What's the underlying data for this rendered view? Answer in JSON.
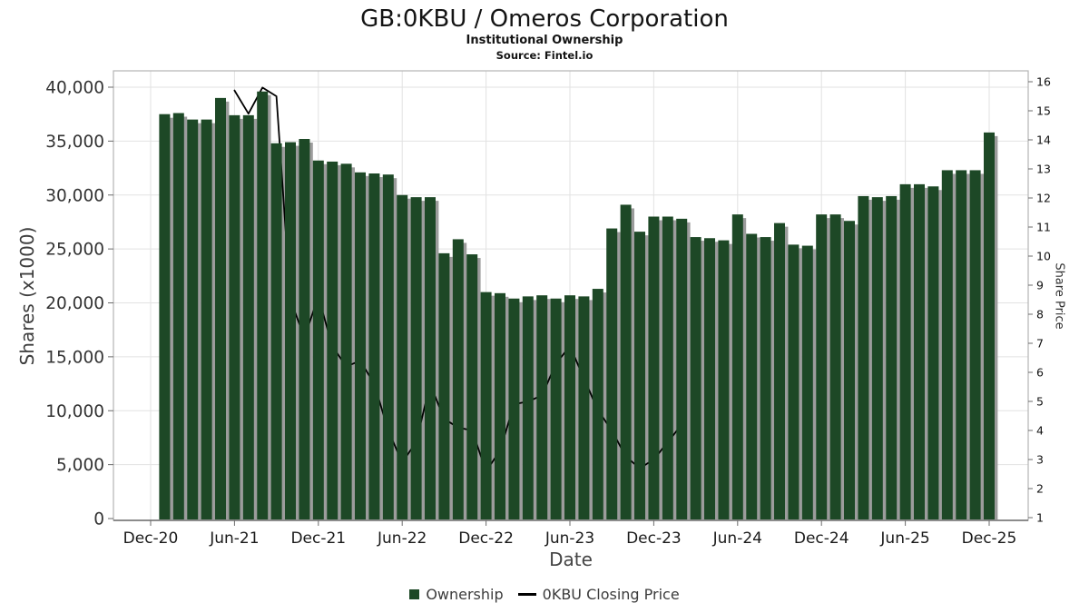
{
  "header": {
    "title": "GB:0KBU / Omeros Corporation",
    "subtitle": "Institutional Ownership",
    "source": "Source: Fintel.io"
  },
  "chart_data": {
    "type": "bar",
    "title": "GB:0KBU / Omeros Corporation",
    "subtitle": "Institutional Ownership",
    "source": "Source: Fintel.io",
    "xlabel": "Date",
    "ylabel_left": "Shares (x1000)",
    "ylabel_right": "Share Price",
    "grid": true,
    "legend_position": "bottom",
    "ylim_left": [
      0,
      40000
    ],
    "ylim_right": [
      1,
      16
    ],
    "y_ticks_left_values": [
      0,
      5000,
      10000,
      15000,
      20000,
      25000,
      30000,
      35000,
      40000
    ],
    "y_ticks_left_labels": [
      "0",
      "5,000",
      "10,000",
      "15,000",
      "20,000",
      "25,000",
      "30,000",
      "35,000",
      "40,000"
    ],
    "y_ticks_right_values": [
      1,
      2,
      3,
      4,
      5,
      6,
      7,
      8,
      9,
      10,
      11,
      12,
      13,
      14,
      15,
      16
    ],
    "x_tick_labels": [
      "Dec-20",
      "Jun-21",
      "Dec-21",
      "Jun-22",
      "Dec-22",
      "Jun-23",
      "Dec-23",
      "Jun-24",
      "Dec-24",
      "Jun-25",
      "Dec-25"
    ],
    "months": [
      "Jan-21",
      "Feb-21",
      "Mar-21",
      "Apr-21",
      "May-21",
      "Jun-21",
      "Jul-21",
      "Aug-21",
      "Sep-21",
      "Oct-21",
      "Nov-21",
      "Dec-21",
      "Jan-22",
      "Feb-22",
      "Mar-22",
      "Apr-22",
      "May-22",
      "Jun-22",
      "Jul-22",
      "Aug-22",
      "Sep-22",
      "Oct-22",
      "Nov-22",
      "Dec-22",
      "Jan-23",
      "Feb-23",
      "Mar-23",
      "Apr-23",
      "May-23",
      "Jun-23",
      "Jul-23",
      "Aug-23",
      "Sep-23",
      "Oct-23",
      "Nov-23",
      "Dec-23",
      "Jan-24",
      "Feb-24",
      "Mar-24",
      "Apr-24",
      "May-24",
      "Jun-24",
      "Jul-24",
      "Aug-24",
      "Sep-24",
      "Oct-24",
      "Nov-24",
      "Dec-24",
      "Jan-25",
      "Feb-25",
      "Mar-25",
      "Apr-25",
      "May-25",
      "Jun-25",
      "Jul-25",
      "Aug-25",
      "Sep-25",
      "Oct-25",
      "Nov-25",
      "Dec-25"
    ],
    "series": [
      {
        "name": "Ownership",
        "type": "bar",
        "axis": "left",
        "unit": "thousands of shares",
        "values": [
          37500,
          37600,
          37000,
          37000,
          39000,
          37400,
          37400,
          39600,
          34800,
          34900,
          35200,
          33200,
          33100,
          32900,
          32100,
          32000,
          31900,
          30000,
          29800,
          29800,
          24600,
          25900,
          24500,
          21000,
          20900,
          20400,
          20600,
          20700,
          20400,
          20700,
          20600,
          21300,
          26900,
          29100,
          26600,
          28000,
          28000,
          27800,
          26100,
          26000,
          25800,
          28200,
          26400,
          26100,
          27400,
          25400,
          25300,
          28200,
          28200,
          27600,
          29900,
          29800,
          29900,
          31000,
          31000,
          30800,
          32300,
          32300,
          32300,
          35800
        ]
      },
      {
        "name": "0KBU Closing Price",
        "type": "line",
        "axis": "right",
        "unit": "price",
        "start_month": "Jun-21",
        "start_month_index": 5,
        "values": [
          15.7,
          14.9,
          15.8,
          15.5,
          8.5,
          7.2,
          8.6,
          6.9,
          6.2,
          6.4,
          5.6,
          4.0,
          2.9,
          3.6,
          5.6,
          4.4,
          4.1,
          4.0,
          2.6,
          3.3,
          4.9,
          5.0,
          5.2,
          6.3,
          6.9,
          5.8,
          4.7,
          4.0,
          3.1,
          2.7,
          3.0,
          3.6,
          4.2
        ]
      }
    ],
    "legend": [
      {
        "label": "Ownership",
        "type": "bar",
        "color": "#1d4826"
      },
      {
        "label": "0KBU Closing Price",
        "type": "line",
        "color": "#000000"
      }
    ],
    "colors": {
      "bar": "#1d4826",
      "bar_shadow": "#9c9c9c",
      "line": "#000000",
      "grid": "#e2e2e2",
      "frame": "#b5b5b5",
      "axis": "#6b6b6b",
      "tick_label_left": "#333333",
      "tick_label_right": "#111111",
      "tick_label_x": "#1a1a1a"
    }
  }
}
